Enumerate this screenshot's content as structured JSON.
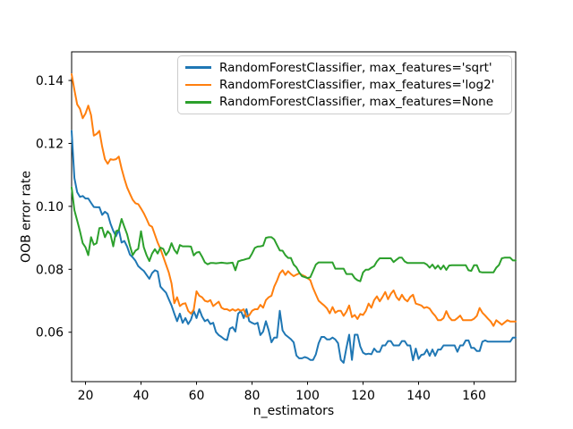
{
  "chart_data": {
    "type": "line",
    "title": "",
    "xlabel": "n_estimators",
    "ylabel": "OOB error rate",
    "xlim": [
      15,
      175
    ],
    "ylim": [
      0.0443,
      0.1491
    ],
    "grid": false,
    "legend_position": "upper center",
    "x_ticks": [
      {
        "v": 20,
        "label": "20"
      },
      {
        "v": 40,
        "label": "40"
      },
      {
        "v": 60,
        "label": "60"
      },
      {
        "v": 80,
        "label": "80"
      },
      {
        "v": 100,
        "label": "100"
      },
      {
        "v": 120,
        "label": "120"
      },
      {
        "v": 140,
        "label": "140"
      },
      {
        "v": 160,
        "label": "160"
      }
    ],
    "y_ticks": [
      {
        "v": 0.06,
        "label": "0.06"
      },
      {
        "v": 0.08,
        "label": "0.08"
      },
      {
        "v": 0.1,
        "label": "0.10"
      },
      {
        "v": 0.12,
        "label": "0.12"
      },
      {
        "v": 0.14,
        "label": "0.14"
      }
    ],
    "x_start": 15,
    "x_step": 1,
    "series": [
      {
        "label": "RandomForestClassifier, max_features='sqrt'",
        "color": "#1f77b4",
        "values": [
          0.124,
          0.109,
          0.1045,
          0.103,
          0.1033,
          0.1025,
          0.1025,
          0.1011,
          0.0998,
          0.0997,
          0.0997,
          0.0973,
          0.0983,
          0.0976,
          0.0945,
          0.0922,
          0.0905,
          0.0926,
          0.0885,
          0.089,
          0.0872,
          0.0847,
          0.0838,
          0.0827,
          0.081,
          0.0802,
          0.0795,
          0.0782,
          0.077,
          0.0788,
          0.0797,
          0.0793,
          0.0745,
          0.0735,
          0.0726,
          0.0705,
          0.0685,
          0.0659,
          0.0635,
          0.0659,
          0.063,
          0.0645,
          0.0626,
          0.064,
          0.0668,
          0.0645,
          0.0673,
          0.065,
          0.0635,
          0.064,
          0.0626,
          0.063,
          0.0601,
          0.0591,
          0.0585,
          0.0578,
          0.0575,
          0.0611,
          0.0616,
          0.0602,
          0.0659,
          0.0668,
          0.0645,
          0.0673,
          0.0635,
          0.063,
          0.0626,
          0.063,
          0.0591,
          0.0602,
          0.0635,
          0.0606,
          0.0568,
          0.0583,
          0.0583,
          0.0668,
          0.0606,
          0.0592,
          0.0585,
          0.0578,
          0.0568,
          0.0526,
          0.0517,
          0.0517,
          0.0521,
          0.0518,
          0.0512,
          0.0512,
          0.053,
          0.0565,
          0.0585,
          0.0585,
          0.0577,
          0.0577,
          0.0583,
          0.0577,
          0.0565,
          0.0512,
          0.0503,
          0.055,
          0.0592,
          0.0512,
          0.0592,
          0.0592,
          0.0555,
          0.0535,
          0.053,
          0.0532,
          0.053,
          0.0548,
          0.0538,
          0.0538,
          0.0558,
          0.0558,
          0.0572,
          0.0572,
          0.0558,
          0.0558,
          0.0558,
          0.0572,
          0.0572,
          0.0558,
          0.0558,
          0.0511,
          0.0548,
          0.0515,
          0.0528,
          0.053,
          0.0545,
          0.0525,
          0.0545,
          0.0525,
          0.0545,
          0.0545,
          0.0558,
          0.0558,
          0.0558,
          0.0558,
          0.0558,
          0.0538,
          0.0558,
          0.0558,
          0.0574,
          0.0574,
          0.055,
          0.055,
          0.054,
          0.054,
          0.057,
          0.0574,
          0.057,
          0.057,
          0.057,
          0.057,
          0.057,
          0.057,
          0.057,
          0.057,
          0.057,
          0.0583,
          0.0583
        ]
      },
      {
        "label": "RandomForestClassifier, max_features='log2'",
        "color": "#ff7f0e",
        "values": [
          0.142,
          0.137,
          0.1324,
          0.131,
          0.128,
          0.1295,
          0.132,
          0.129,
          0.1225,
          0.123,
          0.124,
          0.119,
          0.115,
          0.1135,
          0.115,
          0.1148,
          0.115,
          0.1158,
          0.112,
          0.1088,
          0.106,
          0.104,
          0.1021,
          0.101,
          0.1007,
          0.0993,
          0.0978,
          0.096,
          0.094,
          0.0935,
          0.091,
          0.0885,
          0.0865,
          0.084,
          0.0815,
          0.079,
          0.0755,
          0.0692,
          0.0711,
          0.0683,
          0.069,
          0.0692,
          0.0668,
          0.0659,
          0.0672,
          0.073,
          0.0716,
          0.0711,
          0.07,
          0.0697,
          0.0702,
          0.0683,
          0.069,
          0.0697,
          0.0678,
          0.0673,
          0.0673,
          0.0668,
          0.0673,
          0.0668,
          0.0673,
          0.0668,
          0.0673,
          0.0649,
          0.0654,
          0.0668,
          0.0673,
          0.0673,
          0.0687,
          0.0678,
          0.0702,
          0.0711,
          0.0716,
          0.0745,
          0.0764,
          0.0787,
          0.0797,
          0.0782,
          0.0794,
          0.0785,
          0.0778,
          0.0783,
          0.0787,
          0.0782,
          0.0778,
          0.0772,
          0.0765,
          0.074,
          0.072,
          0.07,
          0.0692,
          0.0685,
          0.0676,
          0.066,
          0.068,
          0.0662,
          0.0668,
          0.0668,
          0.0652,
          0.0665,
          0.0685,
          0.0648,
          0.0655,
          0.0642,
          0.0658,
          0.0655,
          0.0668,
          0.0691,
          0.0678,
          0.0702,
          0.0714,
          0.0698,
          0.0712,
          0.0728,
          0.0705,
          0.0722,
          0.0733,
          0.0712,
          0.0702,
          0.0719,
          0.0705,
          0.0698,
          0.0712,
          0.0719,
          0.0691,
          0.0688,
          0.0685,
          0.0677,
          0.068,
          0.0675,
          0.0662,
          0.0652,
          0.0638,
          0.0638,
          0.0645,
          0.0667,
          0.0648,
          0.0638,
          0.0638,
          0.0645,
          0.0653,
          0.0638,
          0.0638,
          0.0638,
          0.0638,
          0.0643,
          0.0652,
          0.0677,
          0.0662,
          0.0653,
          0.0643,
          0.0634,
          0.062,
          0.0638,
          0.0631,
          0.0624,
          0.0631,
          0.0638,
          0.0634,
          0.0634,
          0.0634
        ]
      },
      {
        "label": "RandomForestClassifier, max_features=None",
        "color": "#2ca02c",
        "values": [
          0.106,
          0.0988,
          0.0955,
          0.0921,
          0.0883,
          0.087,
          0.0845,
          0.0902,
          0.0878,
          0.0883,
          0.0931,
          0.0932,
          0.0902,
          0.0921,
          0.0911,
          0.0873,
          0.0921,
          0.0925,
          0.096,
          0.0935,
          0.0911,
          0.0875,
          0.0845,
          0.0859,
          0.0865,
          0.0921,
          0.087,
          0.0845,
          0.0826,
          0.085,
          0.0864,
          0.085,
          0.0869,
          0.0865,
          0.0845,
          0.0858,
          0.0883,
          0.0862,
          0.085,
          0.0877,
          0.0873,
          0.0873,
          0.0873,
          0.0872,
          0.0844,
          0.0853,
          0.0855,
          0.084,
          0.0822,
          0.0816,
          0.082,
          0.082,
          0.0819,
          0.082,
          0.0821,
          0.082,
          0.0819,
          0.082,
          0.0821,
          0.0797,
          0.0825,
          0.0828,
          0.083,
          0.0833,
          0.0835,
          0.085,
          0.0868,
          0.0872,
          0.0873,
          0.0875,
          0.09,
          0.0902,
          0.0902,
          0.0895,
          0.0877,
          0.086,
          0.0859,
          0.0845,
          0.0836,
          0.0836,
          0.0815,
          0.0806,
          0.079,
          0.0778,
          0.0775,
          0.0772,
          0.0775,
          0.0795,
          0.0815,
          0.0822,
          0.0822,
          0.0822,
          0.0822,
          0.0822,
          0.0822,
          0.0802,
          0.0802,
          0.0802,
          0.0802,
          0.0785,
          0.0785,
          0.0785,
          0.0772,
          0.0765,
          0.0762,
          0.079,
          0.0799,
          0.0799,
          0.0805,
          0.081,
          0.0825,
          0.0835,
          0.0835,
          0.0835,
          0.0835,
          0.0835,
          0.0823,
          0.083,
          0.0837,
          0.0837,
          0.0825,
          0.082,
          0.082,
          0.082,
          0.082,
          0.082,
          0.082,
          0.082,
          0.0815,
          0.0805,
          0.0815,
          0.0802,
          0.0812,
          0.08,
          0.0812,
          0.0798,
          0.0812,
          0.0813,
          0.0813,
          0.0813,
          0.0813,
          0.0813,
          0.0813,
          0.0797,
          0.0795,
          0.0813,
          0.0813,
          0.0792,
          0.079,
          0.079,
          0.079,
          0.079,
          0.079,
          0.0805,
          0.0814,
          0.0835,
          0.0837,
          0.0837,
          0.0837,
          0.0828,
          0.0828
        ]
      }
    ]
  }
}
